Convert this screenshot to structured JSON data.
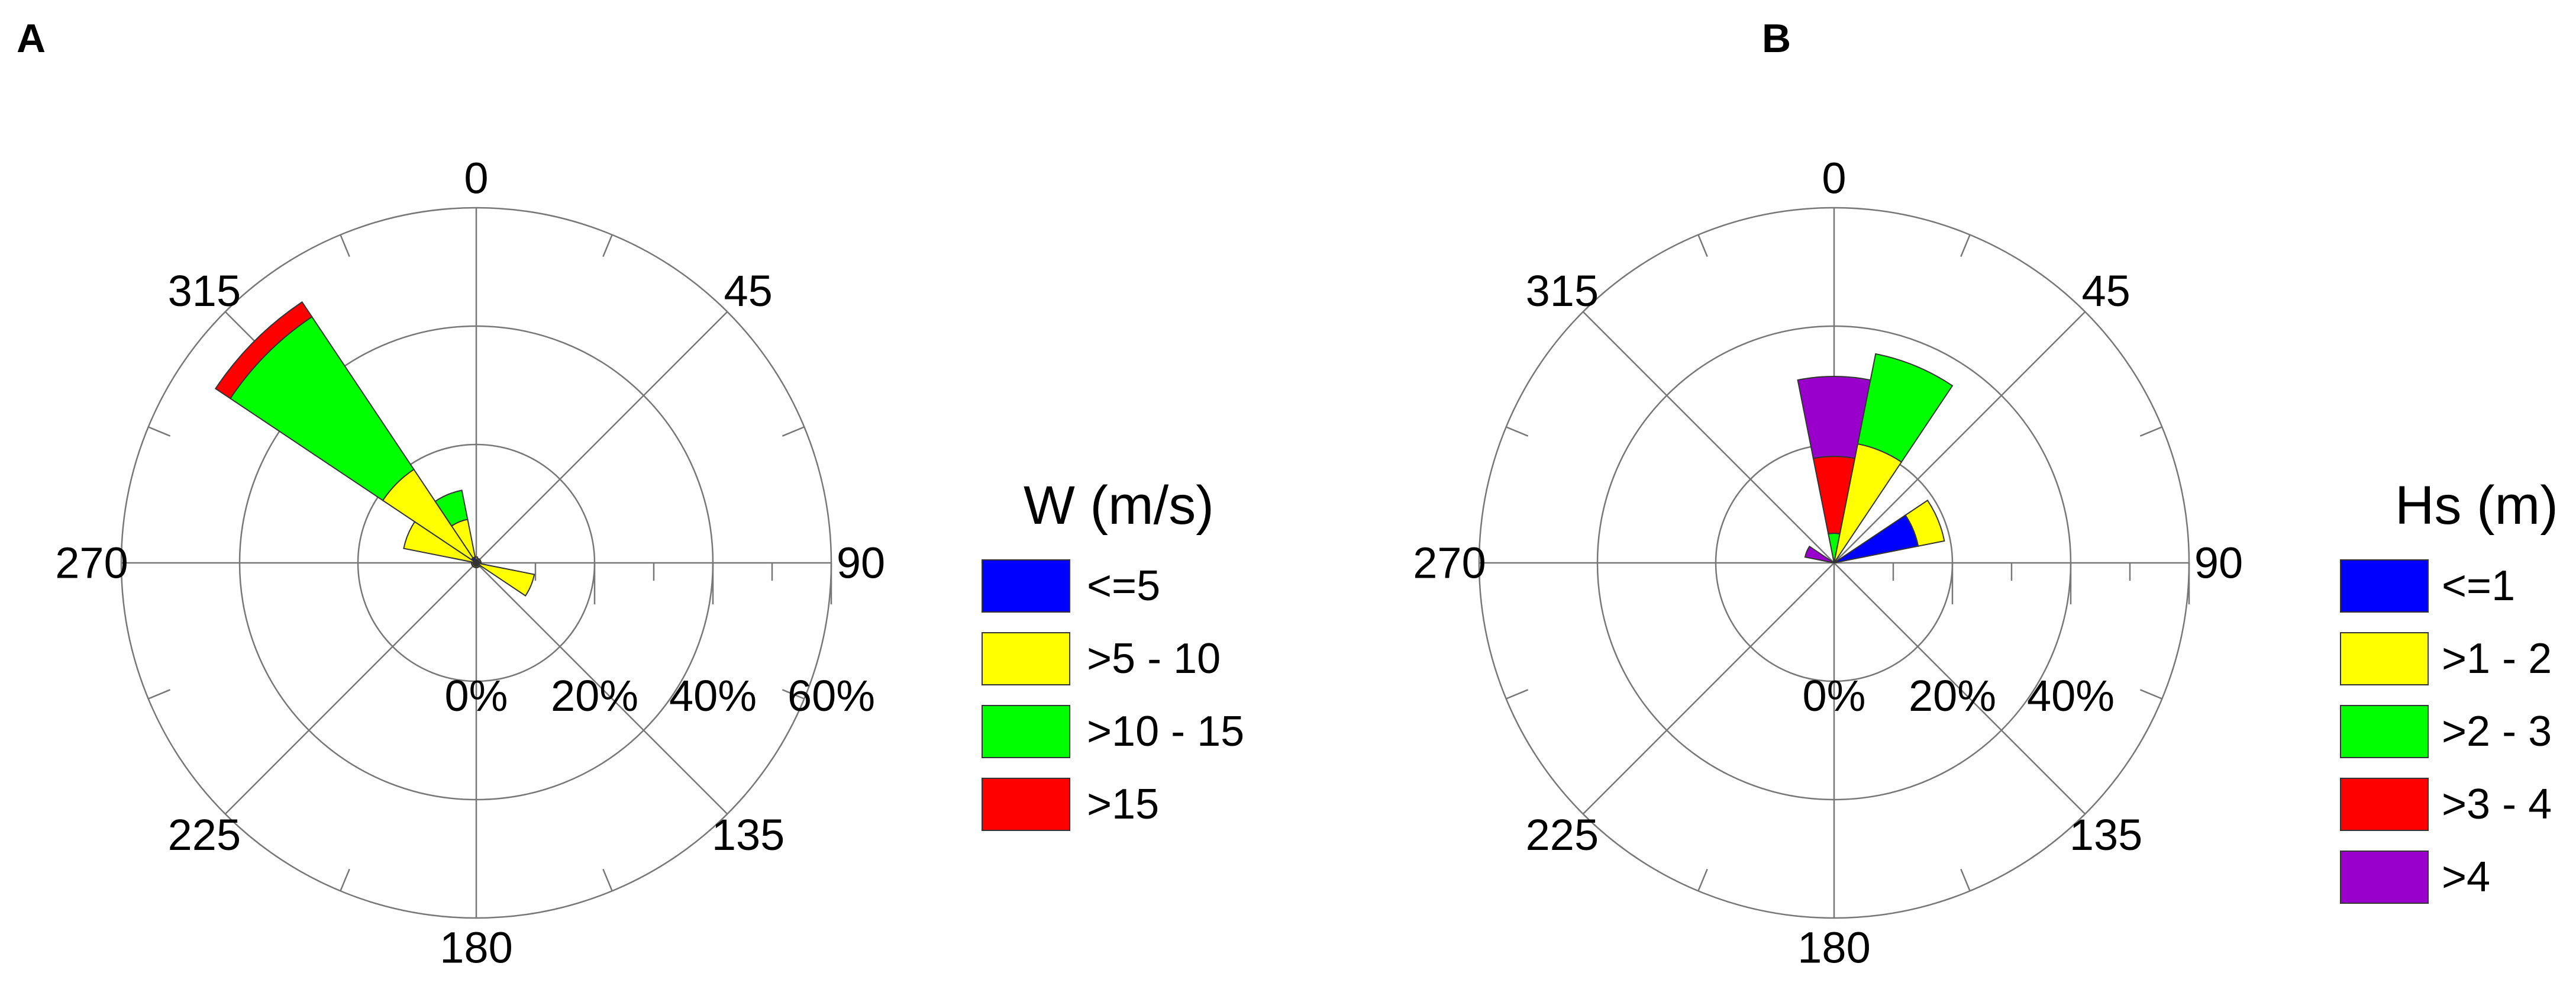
{
  "chart_data": [
    {
      "panel_label": "A",
      "type": "polar-stacked-bar",
      "direction_labels": [
        "0",
        "45",
        "90",
        "135",
        "180",
        "225",
        "270",
        "315"
      ],
      "radial_max": 60,
      "radial_ticks": [
        0,
        20,
        40,
        60
      ],
      "radial_tick_labels": [
        "0%",
        "20%",
        "40%",
        "60%"
      ],
      "legend": {
        "title": "W (m/s)",
        "entries": [
          {
            "label": "<=5",
            "color": "#0000ff"
          },
          {
            "label": ">5 - 10",
            "color": "#ffff00"
          },
          {
            "label": ">10 - 15",
            "color": "#00ff00"
          },
          {
            "label": ">15",
            "color": "#ff0000"
          }
        ]
      },
      "sectors": [
        {
          "direction": 0,
          "values": [
            0.5,
            0.5,
            0,
            0
          ]
        },
        {
          "direction": 22.5,
          "values": [
            0.5,
            0.3,
            0,
            0
          ]
        },
        {
          "direction": 45,
          "values": [
            0.5,
            0.3,
            0,
            0
          ]
        },
        {
          "direction": 67.5,
          "values": [
            0.5,
            0.3,
            0,
            0
          ]
        },
        {
          "direction": 90,
          "values": [
            0.5,
            0.3,
            0,
            0
          ]
        },
        {
          "direction": 112.5,
          "values": [
            0.5,
            9.5,
            0,
            0
          ]
        },
        {
          "direction": 135,
          "values": [
            0.5,
            0.3,
            0,
            0
          ]
        },
        {
          "direction": 157.5,
          "values": [
            0.5,
            0.3,
            0,
            0
          ]
        },
        {
          "direction": 180,
          "values": [
            0.5,
            0.3,
            0,
            0
          ]
        },
        {
          "direction": 202.5,
          "values": [
            0.5,
            0.3,
            0,
            0
          ]
        },
        {
          "direction": 225,
          "values": [
            0.5,
            0.3,
            0,
            0
          ]
        },
        {
          "direction": 247.5,
          "values": [
            0.5,
            0.3,
            0,
            0
          ]
        },
        {
          "direction": 270,
          "values": [
            0.5,
            0.3,
            0,
            0
          ]
        },
        {
          "direction": 292.5,
          "values": [
            0.5,
            12,
            0,
            0
          ]
        },
        {
          "direction": 315,
          "values": [
            1,
            18,
            31,
            3
          ]
        },
        {
          "direction": 337.5,
          "values": [
            1,
            6.5,
            5,
            0
          ]
        }
      ]
    },
    {
      "panel_label": "B",
      "type": "polar-stacked-bar",
      "direction_labels": [
        "0",
        "45",
        "90",
        "135",
        "180",
        "225",
        "270",
        "315"
      ],
      "radial_max": 60,
      "radial_ticks": [
        0,
        20,
        40
      ],
      "radial_tick_labels": [
        "0%",
        "20%",
        "40%"
      ],
      "legend": {
        "title": "Hs (m)",
        "entries": [
          {
            "label": "<=1",
            "color": "#0000ff"
          },
          {
            "label": ">1 - 2",
            "color": "#ffff00"
          },
          {
            "label": ">2 - 3",
            "color": "#00ff00"
          },
          {
            "label": ">3 - 4",
            "color": "#ff0000"
          },
          {
            "label": ">4",
            "color": "#9900cc"
          }
        ]
      },
      "sectors": [
        {
          "direction": 0,
          "values": [
            0,
            0,
            5,
            13,
            13.5
          ]
        },
        {
          "direction": 22.5,
          "values": [
            0.5,
            20,
            15.5,
            0,
            0
          ]
        },
        {
          "direction": 67.5,
          "values": [
            14.5,
            4.5,
            0,
            0,
            0
          ]
        },
        {
          "direction": 292.5,
          "values": [
            0.5,
            0,
            0,
            0,
            4.5
          ]
        }
      ]
    }
  ]
}
